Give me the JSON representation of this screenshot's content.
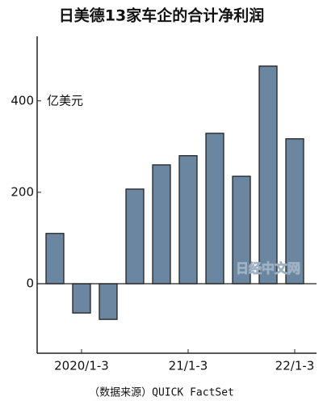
{
  "chart_data": {
    "type": "bar",
    "title": "日美德13家车企的合计净利润",
    "unit_label": "亿美元",
    "categories": [
      null,
      "2020/1-3",
      null,
      null,
      null,
      "21/1-3",
      null,
      null,
      null,
      "22/1-3"
    ],
    "values": [
      110,
      -64,
      -78,
      207,
      260,
      280,
      329,
      235,
      476,
      317
    ],
    "color": "#6a86a0",
    "ylim": [
      -152,
      541
    ],
    "yticks": [
      0,
      200,
      400
    ],
    "grid": false,
    "source": "（数据来源）QUICK FactSet",
    "watermark": "日经中文网"
  }
}
